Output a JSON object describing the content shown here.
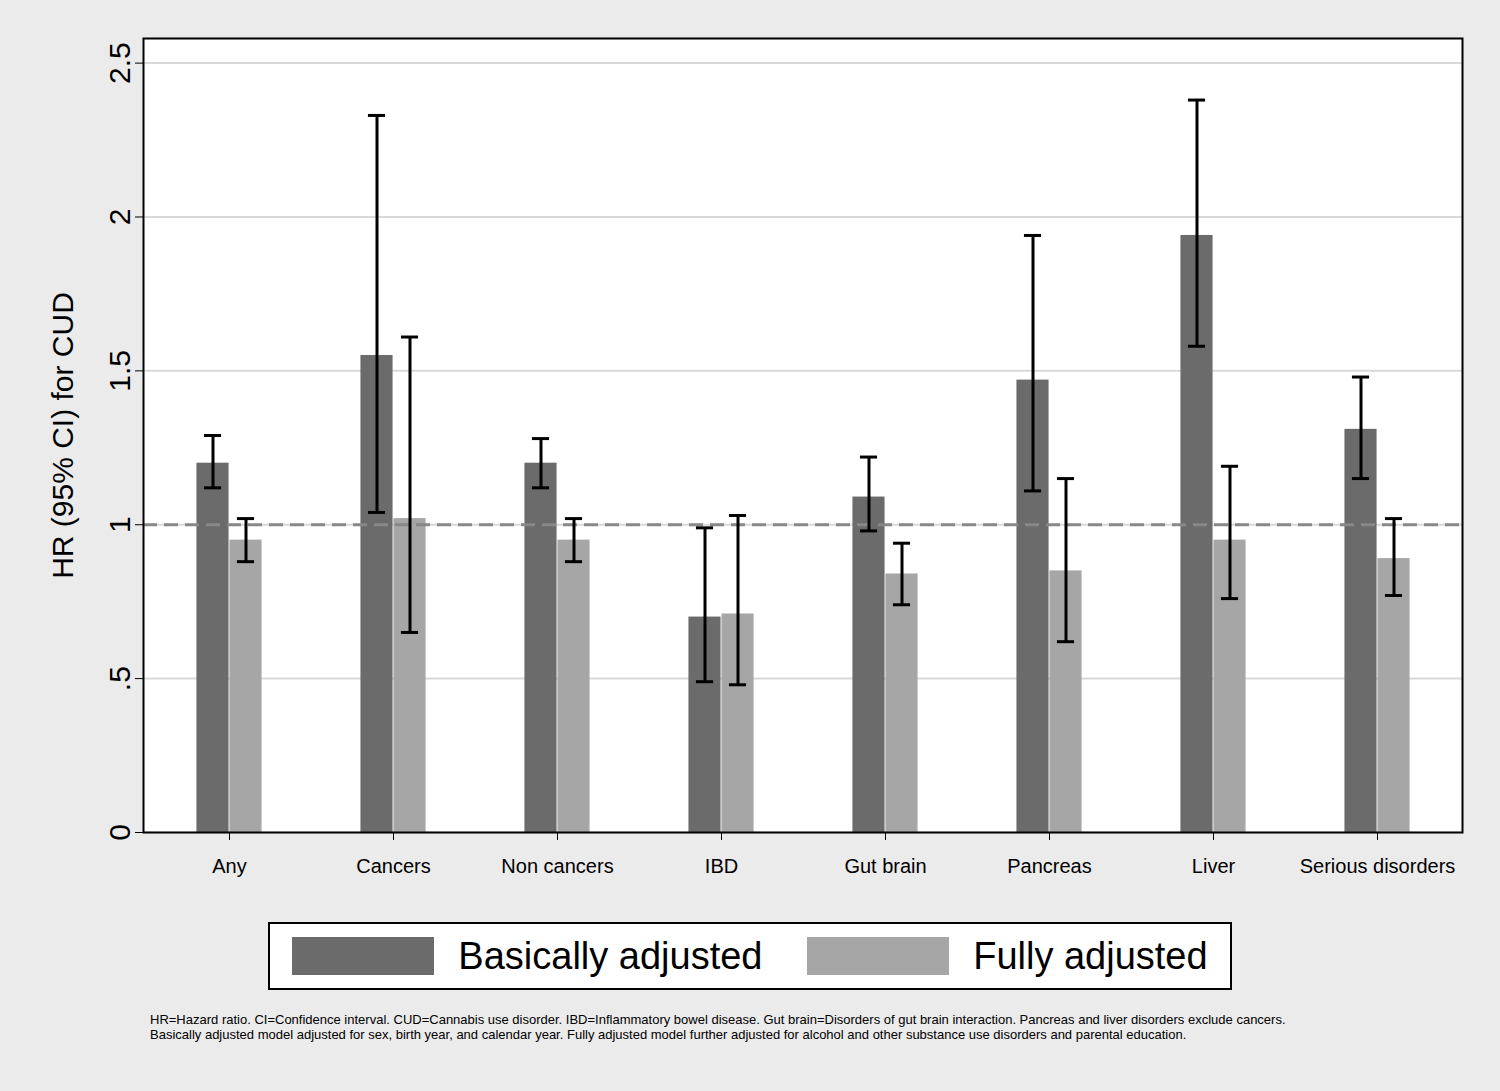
{
  "chart_data": {
    "type": "bar",
    "y_label": "HR (95% CI) for CUD",
    "categories": [
      "Any",
      "Cancers",
      "Non cancers",
      "IBD",
      "Gut brain",
      "Pancreas",
      "Liver",
      "Serious disorders"
    ],
    "series": [
      {
        "name": "Basically adjusted",
        "color": "#6b6b6b",
        "values": [
          1.2,
          1.55,
          1.2,
          0.7,
          1.09,
          1.47,
          1.94,
          1.31
        ],
        "ci_lower": [
          1.12,
          1.04,
          1.12,
          0.49,
          0.98,
          1.11,
          1.58,
          1.15
        ],
        "ci_upper": [
          1.29,
          2.33,
          1.28,
          0.99,
          1.22,
          1.94,
          2.38,
          1.48
        ]
      },
      {
        "name": "Fully adjusted",
        "color": "#a6a6a6",
        "values": [
          0.95,
          1.02,
          0.95,
          0.71,
          0.84,
          0.85,
          0.95,
          0.89
        ],
        "ci_lower": [
          0.88,
          0.65,
          0.88,
          0.48,
          0.74,
          0.62,
          0.76,
          0.77
        ],
        "ci_upper": [
          1.02,
          1.61,
          1.02,
          1.03,
          0.94,
          1.15,
          1.19,
          1.02
        ]
      }
    ],
    "ylim": [
      0,
      2.58
    ],
    "yticks": [
      0,
      {
        "value": 0.5,
        "label": ".5"
      },
      1,
      1.5,
      2,
      2.5
    ],
    "grid": true,
    "reference_line": 1,
    "legend": "bottom",
    "note": [
      "HR=Hazard ratio. CI=Confidence interval. CUD=Cannabis use disorder. IBD=Inflammatory bowel disease. Gut brain=Disorders of gut brain interaction. Pancreas and liver disorders exclude cancers.",
      "Basically adjusted model adjusted for sex, birth year, and calendar year. Fully adjusted model further adjusted for alcohol and other substance use disorders and parental education."
    ]
  }
}
